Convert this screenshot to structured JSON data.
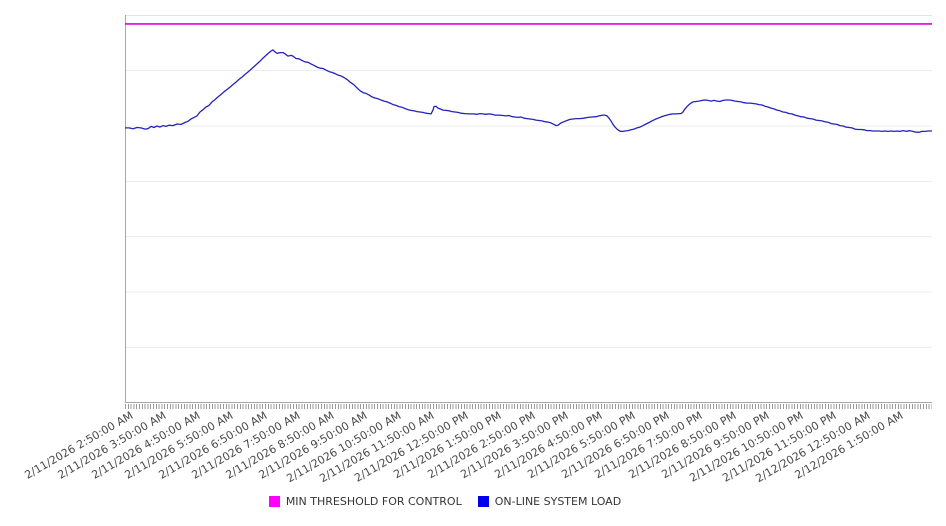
{
  "chart_data": {
    "type": "line",
    "title": "",
    "x_axis": {
      "tick_labels": [
        "2/11/2026 2:50:00 AM",
        "2/11/2026 3:50:00 AM",
        "2/11/2026 4:50:00 AM",
        "2/11/2026 5:50:00 AM",
        "2/11/2026 6:50:00 AM",
        "2/11/2026 7:50:00 AM",
        "2/11/2026 8:50:00 AM",
        "2/11/2026 9:50:00 AM",
        "2/11/2026 10:50:00 AM",
        "2/11/2026 11:50:00 AM",
        "2/11/2026 12:50:00 PM",
        "2/11/2026 1:50:00 PM",
        "2/11/2026 2:50:00 PM",
        "2/11/2026 3:50:00 PM",
        "2/11/2026 4:50:00 PM",
        "2/11/2026 5:50:00 PM",
        "2/11/2026 6:50:00 PM",
        "2/11/2026 7:50:00 PM",
        "2/11/2026 8:50:00 PM",
        "2/11/2026 9:50:00 PM",
        "2/11/2026 10:50:00 PM",
        "2/11/2026 11:50:00 PM",
        "2/12/2026 12:50:00 AM",
        "2/12/2026 1:50:00 AM"
      ],
      "minor_ticks": "every 5 minutes",
      "labels_rotation_deg": -30
    },
    "y_axis": {
      "tick_labels": [],
      "note": "no y-axis tick labels shown; series values are normalized 0-1 of plot height",
      "range": [
        0,
        1
      ],
      "gridline_divisions": 7
    },
    "legend_position": "bottom-center",
    "series": [
      {
        "name": "MIN THRESHOLD FOR CONTROL",
        "type": "threshold-line",
        "color": "#dd00dd",
        "value": 0.977
      },
      {
        "name": "ON-LINE SYSTEM LOAD",
        "type": "line",
        "color": "#2323bc",
        "points": [
          [
            0,
            0.709
          ],
          [
            0.005,
            0.709
          ],
          [
            0.0099,
            0.707
          ],
          [
            0.0149,
            0.71
          ],
          [
            0.0198,
            0.709
          ],
          [
            0.0248,
            0.706
          ],
          [
            0.0285,
            0.707
          ],
          [
            0.0322,
            0.713
          ],
          [
            0.0359,
            0.71
          ],
          [
            0.0397,
            0.714
          ],
          [
            0.0434,
            0.711
          ],
          [
            0.0471,
            0.715
          ],
          [
            0.0508,
            0.713
          ],
          [
            0.0545,
            0.716
          ],
          [
            0.0595,
            0.715
          ],
          [
            0.0644,
            0.719
          ],
          [
            0.0694,
            0.718
          ],
          [
            0.0743,
            0.723
          ],
          [
            0.0781,
            0.726
          ],
          [
            0.0818,
            0.732
          ],
          [
            0.0855,
            0.736
          ],
          [
            0.0892,
            0.74
          ],
          [
            0.0929,
            0.75
          ],
          [
            0.0967,
            0.756
          ],
          [
            0.1004,
            0.763
          ],
          [
            0.1041,
            0.767
          ],
          [
            0.1078,
            0.776
          ],
          [
            0.1115,
            0.782
          ],
          [
            0.1152,
            0.789
          ],
          [
            0.119,
            0.795
          ],
          [
            0.1227,
            0.802
          ],
          [
            0.1264,
            0.808
          ],
          [
            0.1301,
            0.814
          ],
          [
            0.1338,
            0.821
          ],
          [
            0.1375,
            0.827
          ],
          [
            0.1413,
            0.834
          ],
          [
            0.145,
            0.84
          ],
          [
            0.1487,
            0.847
          ],
          [
            0.1524,
            0.853
          ],
          [
            0.1561,
            0.86
          ],
          [
            0.1599,
            0.867
          ],
          [
            0.1636,
            0.874
          ],
          [
            0.1673,
            0.881
          ],
          [
            0.171,
            0.889
          ],
          [
            0.1747,
            0.896
          ],
          [
            0.1784,
            0.903
          ],
          [
            0.1809,
            0.907
          ],
          [
            0.1834,
            0.91
          ],
          [
            0.1859,
            0.905
          ],
          [
            0.1884,
            0.901
          ],
          [
            0.1921,
            0.903
          ],
          [
            0.1958,
            0.903
          ],
          [
            0.1983,
            0.9
          ],
          [
            0.202,
            0.894
          ],
          [
            0.2057,
            0.896
          ],
          [
            0.2082,
            0.894
          ],
          [
            0.2119,
            0.888
          ],
          [
            0.2156,
            0.887
          ],
          [
            0.2193,
            0.883
          ],
          [
            0.223,
            0.879
          ],
          [
            0.2268,
            0.878
          ],
          [
            0.2305,
            0.874
          ],
          [
            0.2342,
            0.87
          ],
          [
            0.2379,
            0.866
          ],
          [
            0.2416,
            0.863
          ],
          [
            0.2454,
            0.862
          ],
          [
            0.2491,
            0.858
          ],
          [
            0.2528,
            0.854
          ],
          [
            0.2565,
            0.852
          ],
          [
            0.2602,
            0.849
          ],
          [
            0.2639,
            0.845
          ],
          [
            0.2677,
            0.843
          ],
          [
            0.2714,
            0.839
          ],
          [
            0.2751,
            0.834
          ],
          [
            0.2788,
            0.827
          ],
          [
            0.2838,
            0.82
          ],
          [
            0.2875,
            0.812
          ],
          [
            0.2912,
            0.805
          ],
          [
            0.2949,
            0.8
          ],
          [
            0.2986,
            0.798
          ],
          [
            0.3024,
            0.794
          ],
          [
            0.3061,
            0.789
          ],
          [
            0.3098,
            0.786
          ],
          [
            0.3135,
            0.784
          ],
          [
            0.3172,
            0.781
          ],
          [
            0.3209,
            0.778
          ],
          [
            0.3246,
            0.776
          ],
          [
            0.3284,
            0.773
          ],
          [
            0.3321,
            0.769
          ],
          [
            0.3358,
            0.767
          ],
          [
            0.3395,
            0.764
          ],
          [
            0.3432,
            0.762
          ],
          [
            0.3469,
            0.759
          ],
          [
            0.3507,
            0.756
          ],
          [
            0.3544,
            0.754
          ],
          [
            0.3581,
            0.753
          ],
          [
            0.3618,
            0.751
          ],
          [
            0.3655,
            0.75
          ],
          [
            0.3692,
            0.749
          ],
          [
            0.373,
            0.747
          ],
          [
            0.3767,
            0.746
          ],
          [
            0.3792,
            0.745
          ],
          [
            0.3816,
            0.755
          ],
          [
            0.3829,
            0.764
          ],
          [
            0.3854,
            0.765
          ],
          [
            0.3879,
            0.76
          ],
          [
            0.3904,
            0.758
          ],
          [
            0.3941,
            0.755
          ],
          [
            0.3978,
            0.754
          ],
          [
            0.4015,
            0.753
          ],
          [
            0.4052,
            0.751
          ],
          [
            0.4089,
            0.75
          ],
          [
            0.4127,
            0.749
          ],
          [
            0.4164,
            0.747
          ],
          [
            0.4213,
            0.746
          ],
          [
            0.4263,
            0.745
          ],
          [
            0.4312,
            0.745
          ],
          [
            0.4362,
            0.744
          ],
          [
            0.4399,
            0.746
          ],
          [
            0.4436,
            0.745
          ],
          [
            0.4473,
            0.744
          ],
          [
            0.451,
            0.745
          ],
          [
            0.4548,
            0.744
          ],
          [
            0.4585,
            0.742
          ],
          [
            0.4635,
            0.742
          ],
          [
            0.4684,
            0.741
          ],
          [
            0.4721,
            0.74
          ],
          [
            0.4758,
            0.741
          ],
          [
            0.4796,
            0.738
          ],
          [
            0.4833,
            0.737
          ],
          [
            0.487,
            0.736
          ],
          [
            0.4907,
            0.737
          ],
          [
            0.4944,
            0.734
          ],
          [
            0.4981,
            0.733
          ],
          [
            0.5019,
            0.732
          ],
          [
            0.5056,
            0.731
          ],
          [
            0.5093,
            0.729
          ],
          [
            0.513,
            0.728
          ],
          [
            0.5167,
            0.727
          ],
          [
            0.5204,
            0.725
          ],
          [
            0.5242,
            0.724
          ],
          [
            0.5279,
            0.722
          ],
          [
            0.5316,
            0.718
          ],
          [
            0.5341,
            0.715
          ],
          [
            0.5366,
            0.716
          ],
          [
            0.539,
            0.72
          ],
          [
            0.5415,
            0.723
          ],
          [
            0.544,
            0.725
          ],
          [
            0.5477,
            0.728
          ],
          [
            0.5514,
            0.731
          ],
          [
            0.5551,
            0.732
          ],
          [
            0.5588,
            0.733
          ],
          [
            0.5638,
            0.733
          ],
          [
            0.5687,
            0.734
          ],
          [
            0.5737,
            0.736
          ],
          [
            0.5786,
            0.737
          ],
          [
            0.5836,
            0.738
          ],
          [
            0.5873,
            0.74
          ],
          [
            0.5898,
            0.741
          ],
          [
            0.5923,
            0.742
          ],
          [
            0.5948,
            0.742
          ],
          [
            0.5973,
            0.74
          ],
          [
            0.5997,
            0.734
          ],
          [
            0.6022,
            0.727
          ],
          [
            0.6047,
            0.718
          ],
          [
            0.6072,
            0.711
          ],
          [
            0.6097,
            0.706
          ],
          [
            0.6122,
            0.702
          ],
          [
            0.6146,
            0.7
          ],
          [
            0.6171,
            0.7
          ],
          [
            0.6196,
            0.701
          ],
          [
            0.6233,
            0.702
          ],
          [
            0.627,
            0.704
          ],
          [
            0.6307,
            0.706
          ],
          [
            0.6345,
            0.709
          ],
          [
            0.6382,
            0.711
          ],
          [
            0.6419,
            0.715
          ],
          [
            0.6456,
            0.719
          ],
          [
            0.6493,
            0.723
          ],
          [
            0.653,
            0.727
          ],
          [
            0.6568,
            0.731
          ],
          [
            0.6605,
            0.734
          ],
          [
            0.6642,
            0.737
          ],
          [
            0.6679,
            0.74
          ],
          [
            0.6716,
            0.742
          ],
          [
            0.6753,
            0.744
          ],
          [
            0.679,
            0.745
          ],
          [
            0.6828,
            0.745
          ],
          [
            0.6865,
            0.746
          ],
          [
            0.689,
            0.746
          ],
          [
            0.6914,
            0.75
          ],
          [
            0.6939,
            0.758
          ],
          [
            0.6964,
            0.764
          ],
          [
            0.6989,
            0.769
          ],
          [
            0.7014,
            0.773
          ],
          [
            0.7038,
            0.776
          ],
          [
            0.7076,
            0.777
          ],
          [
            0.7113,
            0.778
          ],
          [
            0.715,
            0.78
          ],
          [
            0.7187,
            0.781
          ],
          [
            0.7224,
            0.78
          ],
          [
            0.7261,
            0.778
          ],
          [
            0.7299,
            0.78
          ],
          [
            0.7336,
            0.778
          ],
          [
            0.7373,
            0.777
          ],
          [
            0.741,
            0.78
          ],
          [
            0.7447,
            0.781
          ],
          [
            0.7484,
            0.781
          ],
          [
            0.7522,
            0.78
          ],
          [
            0.7559,
            0.778
          ],
          [
            0.7596,
            0.777
          ],
          [
            0.7633,
            0.776
          ],
          [
            0.767,
            0.774
          ],
          [
            0.7708,
            0.773
          ],
          [
            0.7745,
            0.773
          ],
          [
            0.7782,
            0.772
          ],
          [
            0.7819,
            0.771
          ],
          [
            0.7856,
            0.769
          ],
          [
            0.7893,
            0.768
          ],
          [
            0.7931,
            0.765
          ],
          [
            0.7968,
            0.763
          ],
          [
            0.8005,
            0.76
          ],
          [
            0.8042,
            0.758
          ],
          [
            0.8079,
            0.755
          ],
          [
            0.8116,
            0.753
          ],
          [
            0.8154,
            0.75
          ],
          [
            0.8191,
            0.749
          ],
          [
            0.8228,
            0.746
          ],
          [
            0.8265,
            0.745
          ],
          [
            0.8302,
            0.742
          ],
          [
            0.8339,
            0.74
          ],
          [
            0.8377,
            0.738
          ],
          [
            0.8414,
            0.737
          ],
          [
            0.8451,
            0.734
          ],
          [
            0.8488,
            0.733
          ],
          [
            0.8525,
            0.732
          ],
          [
            0.8563,
            0.729
          ],
          [
            0.86,
            0.728
          ],
          [
            0.8637,
            0.727
          ],
          [
            0.8674,
            0.725
          ],
          [
            0.8699,
            0.724
          ],
          [
            0.8724,
            0.723
          ],
          [
            0.8748,
            0.72
          ],
          [
            0.8786,
            0.719
          ],
          [
            0.8823,
            0.718
          ],
          [
            0.886,
            0.715
          ],
          [
            0.8897,
            0.714
          ],
          [
            0.8934,
            0.711
          ],
          [
            0.8971,
            0.71
          ],
          [
            0.9009,
            0.709
          ],
          [
            0.9046,
            0.706
          ],
          [
            0.9083,
            0.705
          ],
          [
            0.912,
            0.705
          ],
          [
            0.9157,
            0.704
          ],
          [
            0.9195,
            0.702
          ],
          [
            0.9232,
            0.702
          ],
          [
            0.9269,
            0.701
          ],
          [
            0.9306,
            0.701
          ],
          [
            0.9343,
            0.701
          ],
          [
            0.9381,
            0.7
          ],
          [
            0.9418,
            0.701
          ],
          [
            0.9455,
            0.7
          ],
          [
            0.9492,
            0.701
          ],
          [
            0.9529,
            0.7
          ],
          [
            0.9567,
            0.701
          ],
          [
            0.9604,
            0.7
          ],
          [
            0.9641,
            0.702
          ],
          [
            0.9666,
            0.701
          ],
          [
            0.9691,
            0.7
          ],
          [
            0.9715,
            0.702
          ],
          [
            0.974,
            0.701
          ],
          [
            0.9765,
            0.7
          ],
          [
            0.9802,
            0.698
          ],
          [
            0.9839,
            0.698
          ],
          [
            0.9876,
            0.7
          ],
          [
            0.9913,
            0.7
          ],
          [
            0.995,
            0.701
          ],
          [
            1,
            0.701
          ]
        ]
      }
    ],
    "style": {
      "gridline_color": "#ececec",
      "plot_border_top_color": "#e3e3e3",
      "axis_color": "#a8a8a8",
      "tick_color": "#9a9a9a",
      "background": "#ffffff"
    }
  },
  "legend": {
    "items": [
      {
        "label": "MIN THRESHOLD FOR CONTROL",
        "color": "#ff00ff"
      },
      {
        "label": "ON-LINE SYSTEM LOAD",
        "color": "#0000ee"
      }
    ]
  }
}
